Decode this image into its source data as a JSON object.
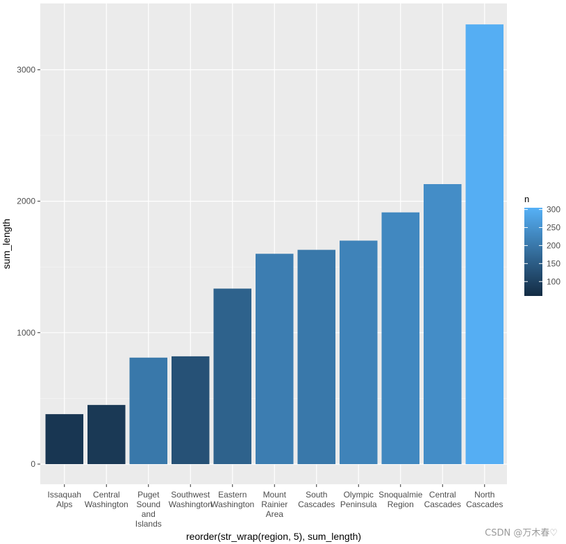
{
  "chart_data": {
    "type": "bar",
    "title": "",
    "xlabel": "reorder(str_wrap(region, 5), sum_length)",
    "ylabel": "sum_length",
    "ylim": [
      -170,
      3500
    ],
    "yticks": [
      0,
      1000,
      2000,
      3000
    ],
    "grid": true,
    "categories": [
      [
        "Issaquah",
        "Alps"
      ],
      [
        "Central",
        "Washington"
      ],
      [
        "Puget",
        "Sound",
        "and",
        "Islands"
      ],
      [
        "Southwest",
        "Washington"
      ],
      [
        "Eastern",
        "Washington"
      ],
      [
        "Mount",
        "Rainier",
        "Area"
      ],
      [
        "South",
        "Cascades"
      ],
      [
        "Olympic",
        "Peninsula"
      ],
      [
        "Snoqualmie",
        "Region"
      ],
      [
        "Central",
        "Cascades"
      ],
      [
        "North",
        "Cascades"
      ]
    ],
    "values": [
      380,
      450,
      810,
      820,
      1335,
      1600,
      1630,
      1700,
      1915,
      2130,
      3345
    ],
    "fill_values": [
      80,
      85,
      200,
      130,
      160,
      210,
      200,
      220,
      230,
      240,
      300
    ],
    "legend": {
      "title": "n",
      "labels": [
        "300",
        "250",
        "200",
        "150",
        "100"
      ],
      "range": [
        60,
        305
      ],
      "low_color": "#132B43",
      "high_color": "#56B1F7",
      "position": "right"
    },
    "colors": {
      "panel": "#EBEBEB",
      "grid_major": "#FFFFFF"
    }
  },
  "watermark": "CSDN @万木春♡"
}
